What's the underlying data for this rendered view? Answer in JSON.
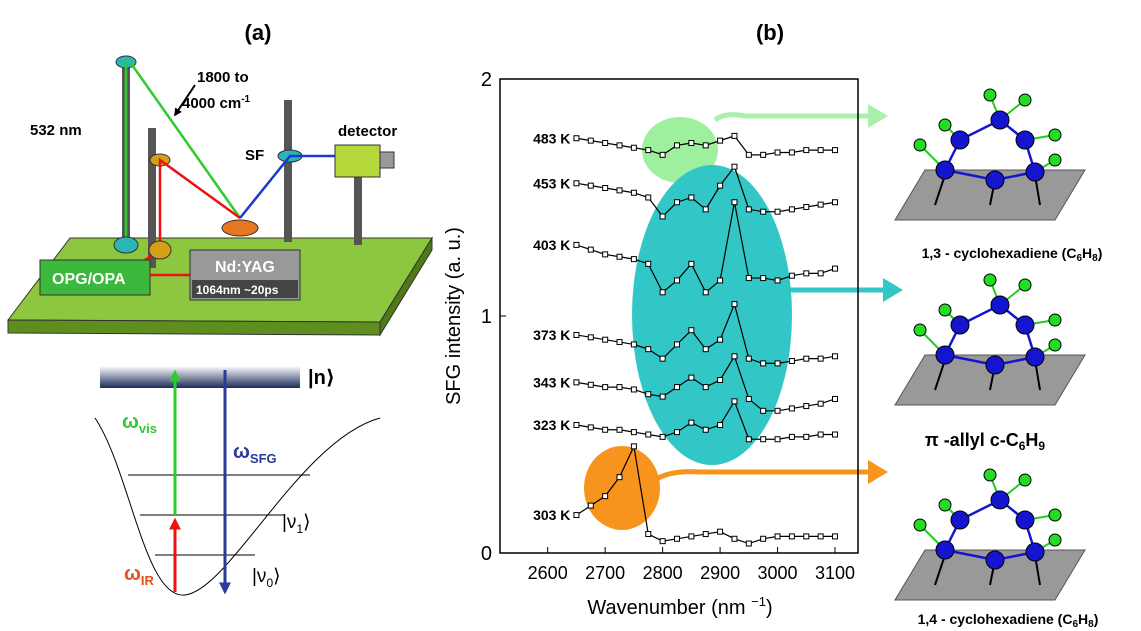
{
  "panel_a": {
    "title": "(a)",
    "setup": {
      "laser_532": "532 nm",
      "ir_range_1": "1800 to",
      "ir_range_2": "4000 cm",
      "ir_range_sup": "-1",
      "detector": "detector",
      "sf": "SF",
      "opg": "OPG/OPA",
      "ndyag": "Nd:YAG",
      "pulse": "1064nm ~20ps"
    },
    "levels": {
      "n": "|n⟩",
      "v1": [
        "|ν",
        "1",
        "⟩"
      ],
      "v0": [
        "|ν",
        "0",
        "⟩"
      ],
      "w_vis": [
        "ω",
        "vis"
      ],
      "w_sfg": [
        "ω",
        "SFG"
      ],
      "w_ir": [
        "ω",
        "IR"
      ]
    }
  },
  "panel_b": {
    "title": "(b)",
    "molecules": [
      {
        "parts": [
          "1,3 - cyclohexadiene (C",
          "6",
          "H",
          "8",
          ")"
        ]
      },
      {
        "parts": [
          "π -allyl c-C",
          "6",
          "H",
          "9"
        ]
      },
      {
        "parts": [
          "1,4 - cyclohexadiene (C",
          "6",
          "H",
          "8",
          ")"
        ]
      }
    ]
  },
  "chart_data": {
    "type": "line",
    "y_label": "SFG intensity (a. u.)",
    "x_label": "Wavenumber (nm ",
    "x_label_sup": "−1",
    "x_label_end": ")",
    "x": [
      2650,
      2675,
      2700,
      2725,
      2750,
      2775,
      2800,
      2825,
      2850,
      2875,
      2900,
      2925,
      2950,
      2975,
      3000,
      3025,
      3050,
      3075,
      3100
    ],
    "xlim": [
      2517,
      3140
    ],
    "xticks": [
      2600,
      2700,
      2800,
      2900,
      3000,
      3100
    ],
    "ylim": [
      0,
      2
    ],
    "yticks": [
      0,
      1,
      2
    ],
    "line_color": "#000000",
    "marker_fill": "#ffffff",
    "series": [
      {
        "name": "483 K",
        "values": [
          1.75,
          1.74,
          1.73,
          1.72,
          1.71,
          1.7,
          1.68,
          1.72,
          1.73,
          1.72,
          1.74,
          1.76,
          1.68,
          1.68,
          1.69,
          1.69,
          1.7,
          1.7,
          1.7
        ]
      },
      {
        "name": "453 K",
        "values": [
          1.56,
          1.55,
          1.54,
          1.53,
          1.52,
          1.5,
          1.42,
          1.48,
          1.5,
          1.45,
          1.55,
          1.63,
          1.45,
          1.44,
          1.44,
          1.45,
          1.46,
          1.47,
          1.48
        ]
      },
      {
        "name": "403 K",
        "values": [
          1.3,
          1.28,
          1.26,
          1.25,
          1.24,
          1.22,
          1.1,
          1.15,
          1.22,
          1.1,
          1.15,
          1.48,
          1.16,
          1.16,
          1.15,
          1.17,
          1.18,
          1.18,
          1.2
        ]
      },
      {
        "name": "373 K",
        "values": [
          0.92,
          0.91,
          0.9,
          0.89,
          0.88,
          0.86,
          0.82,
          0.88,
          0.94,
          0.86,
          0.9,
          1.05,
          0.82,
          0.8,
          0.8,
          0.81,
          0.82,
          0.82,
          0.83
        ]
      },
      {
        "name": "343 K",
        "values": [
          0.72,
          0.71,
          0.7,
          0.7,
          0.69,
          0.67,
          0.66,
          0.7,
          0.74,
          0.7,
          0.73,
          0.83,
          0.65,
          0.6,
          0.6,
          0.61,
          0.62,
          0.63,
          0.65
        ]
      },
      {
        "name": "323 K",
        "values": [
          0.54,
          0.53,
          0.52,
          0.52,
          0.51,
          0.5,
          0.49,
          0.51,
          0.55,
          0.52,
          0.54,
          0.64,
          0.48,
          0.48,
          0.48,
          0.49,
          0.49,
          0.5,
          0.5
        ]
      },
      {
        "name": "303 K",
        "values": [
          0.16,
          0.2,
          0.24,
          0.32,
          0.45,
          0.08,
          0.05,
          0.06,
          0.07,
          0.08,
          0.09,
          0.06,
          0.04,
          0.06,
          0.07,
          0.07,
          0.07,
          0.07,
          0.07
        ]
      }
    ]
  }
}
